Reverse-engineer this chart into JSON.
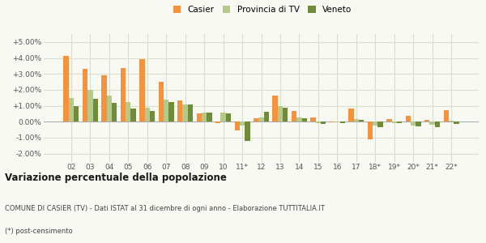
{
  "categories": [
    "02",
    "03",
    "04",
    "05",
    "06",
    "07",
    "08",
    "09",
    "10",
    "11*",
    "12",
    "13",
    "14",
    "15",
    "16",
    "17",
    "18*",
    "19*",
    "20*",
    "21*",
    "22*"
  ],
  "casier": [
    4.15,
    3.3,
    2.9,
    3.35,
    3.95,
    2.48,
    1.35,
    0.5,
    -0.1,
    -0.55,
    0.2,
    1.65,
    0.65,
    0.28,
    -0.05,
    0.85,
    -1.1,
    0.18,
    0.35,
    0.12,
    0.72
  ],
  "provincia": [
    1.5,
    2.0,
    1.65,
    1.25,
    0.9,
    1.4,
    1.1,
    0.55,
    0.55,
    -0.25,
    0.25,
    0.98,
    0.25,
    -0.08,
    -0.05,
    0.18,
    -0.25,
    -0.1,
    -0.22,
    -0.18,
    0.08
  ],
  "veneto": [
    1.0,
    1.42,
    1.18,
    0.82,
    0.7,
    1.22,
    1.08,
    0.55,
    0.5,
    -1.22,
    0.6,
    0.88,
    0.2,
    -0.12,
    -0.08,
    0.1,
    -0.32,
    -0.1,
    -0.28,
    -0.32,
    -0.12
  ],
  "casier_color": "#f5923e",
  "provincia_color": "#b5c98a",
  "veneto_color": "#6e8c3a",
  "bg_color": "#f9f9f4",
  "grid_color": "#ddddcc",
  "title": "Variazione percentuale della popolazione",
  "subtitle": "COMUNE DI CASIER (TV) - Dati ISTAT al 31 dicembre di ogni anno - Elaborazione TUTTITALIA.IT",
  "footnote": "(*) post-censimento",
  "ylim": [
    -2.5,
    5.5
  ],
  "yticks": [
    -2.0,
    -1.0,
    0.0,
    1.0,
    2.0,
    3.0,
    4.0,
    5.0
  ]
}
